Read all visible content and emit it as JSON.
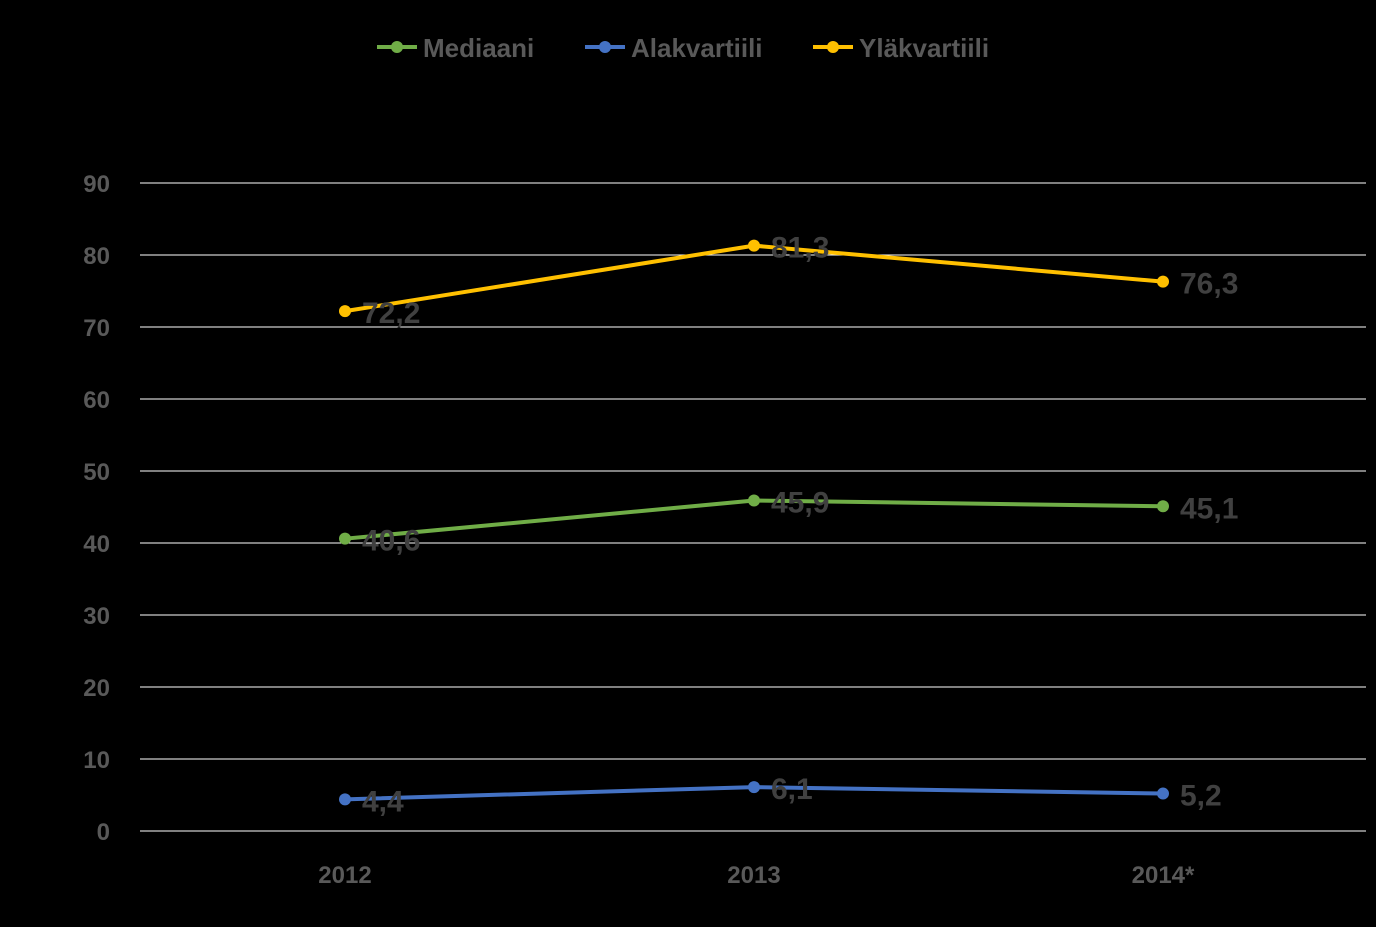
{
  "chart_data": {
    "type": "line",
    "title": "",
    "xlabel": "",
    "ylabel": "",
    "categories": [
      "2012",
      "2013",
      "2014*"
    ],
    "ylim": [
      0,
      90
    ],
    "yticks": [
      "0",
      "10",
      "20",
      "30",
      "40",
      "50",
      "60",
      "70",
      "80",
      "90"
    ],
    "grid": true,
    "legend_position": "top",
    "series": [
      {
        "name": "Mediaani",
        "color": "#70ad47",
        "values": [
          40.6,
          45.9,
          45.1
        ],
        "labels": [
          "40,6",
          "45,9",
          "45,1"
        ]
      },
      {
        "name": "Alakvartiili",
        "color": "#4472c4",
        "values": [
          4.4,
          6.1,
          5.2
        ],
        "labels": [
          "4,4",
          "6,1",
          "5,2"
        ]
      },
      {
        "name": "Yläkvartiili",
        "color": "#ffc000",
        "values": [
          72.2,
          81.3,
          76.3
        ],
        "labels": [
          "72,2",
          "81,3",
          "76,3"
        ]
      }
    ]
  }
}
